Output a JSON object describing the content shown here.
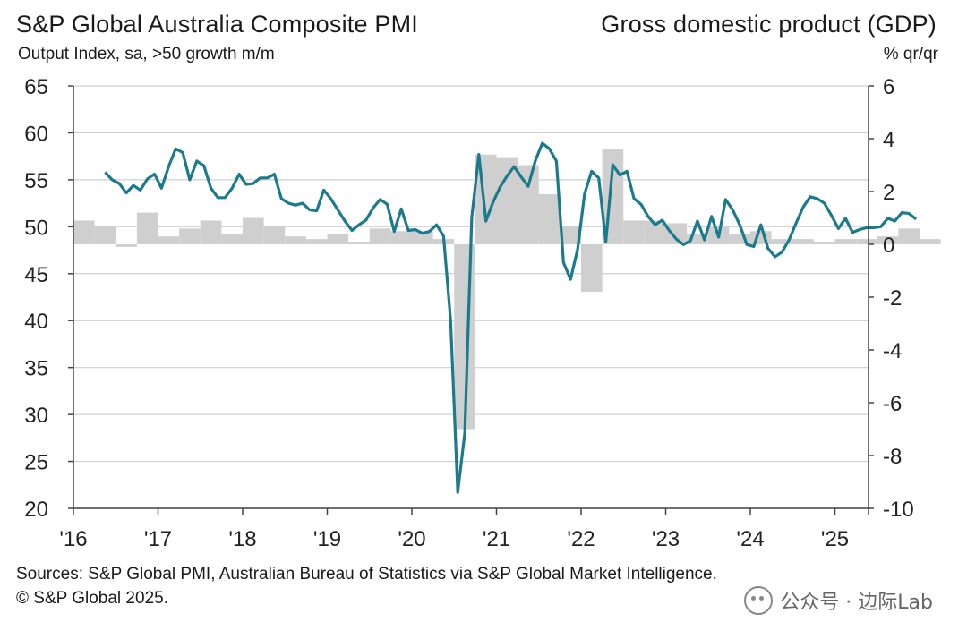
{
  "header": {
    "left_title": "S&P Global Australia Composite PMI",
    "left_subtitle": "Output Index, sa, >50 growth m/m",
    "right_title": "Gross domestic product (GDP)",
    "right_subtitle": "% qr/qr"
  },
  "footer": {
    "sources": "Sources: S&P Global PMI, Australian Bureau of Statistics via S&P Global Market Intelligence.",
    "copyright": "© S&P Global 2025."
  },
  "watermark": {
    "text": "公众号 · 边际Lab",
    "icon": "wechat-icon"
  },
  "colors": {
    "line": "#1b7a8c",
    "bars": "#cfcfcf",
    "grid": "#d0d0d0",
    "axis": "#444444"
  },
  "chart_data": {
    "type": "bar+line",
    "title": "S&P Global Australia Composite PMI",
    "x_tick_labels": [
      "'16",
      "'17",
      "'18",
      "'19",
      "'20",
      "'21",
      "'22",
      "'23",
      "'24",
      "'25"
    ],
    "y_left": {
      "label": "Output Index, sa, >50 growth m/m",
      "range": [
        20,
        65
      ],
      "ticks": [
        65,
        60,
        55,
        50,
        45,
        40,
        35,
        30,
        25,
        20
      ]
    },
    "y_right": {
      "label": "% qr/qr",
      "range": [
        -10,
        6
      ],
      "ticks": [
        6,
        4,
        2,
        0,
        -2,
        -4,
        -6,
        -8,
        -10
      ]
    },
    "grid": true,
    "series": [
      {
        "name": "S&P Global Australia Composite PMI",
        "kind": "line",
        "axis": "left",
        "x_start": "2016-05",
        "frequency": "monthly",
        "values": [
          55.8,
          55.0,
          54.6,
          53.6,
          54.4,
          53.9,
          55.1,
          55.6,
          54.1,
          56.4,
          58.3,
          57.9,
          55.0,
          57.0,
          56.5,
          54.1,
          53.1,
          53.1,
          54.1,
          55.6,
          54.5,
          54.6,
          55.2,
          55.2,
          55.6,
          53.0,
          52.5,
          52.3,
          52.5,
          51.8,
          51.7,
          53.9,
          53.0,
          51.8,
          50.6,
          49.6,
          50.2,
          50.7,
          52.0,
          52.9,
          52.4,
          49.5,
          51.9,
          49.6,
          49.7,
          49.3,
          49.5,
          50.2,
          49.0,
          40.0,
          21.7,
          28.0,
          51.0,
          57.7,
          50.6,
          52.6,
          54.2,
          55.4,
          56.4,
          55.3,
          54.3,
          57.0,
          58.9,
          58.3,
          57.0,
          46.2,
          44.4,
          47.6,
          53.5,
          55.9,
          55.2,
          48.4,
          56.6,
          55.5,
          55.9,
          53.0,
          52.4,
          51.1,
          50.2,
          50.7,
          49.6,
          48.7,
          48.1,
          48.5,
          50.6,
          48.6,
          51.1,
          48.9,
          52.9,
          51.8,
          50.2,
          48.1,
          47.9,
          50.2,
          47.7,
          46.8,
          47.3,
          48.6,
          50.4,
          52.1,
          53.2,
          53.0,
          52.5,
          51.2,
          49.8,
          50.9,
          49.4,
          49.7,
          49.9,
          49.9,
          50.0,
          50.9,
          50.6,
          51.5,
          51.4,
          50.8
        ]
      },
      {
        "name": "Gross domestic product (GDP)",
        "kind": "bar",
        "axis": "right",
        "x_start": "2016-Q1",
        "frequency": "quarterly",
        "values": [
          0.9,
          0.7,
          -0.1,
          1.2,
          0.3,
          0.6,
          0.9,
          0.4,
          1.0,
          0.7,
          0.3,
          0.2,
          0.4,
          0.1,
          0.6,
          0.5,
          0.5,
          0.2,
          -7.0,
          3.4,
          3.3,
          3.0,
          1.9,
          0.7,
          -1.8,
          3.6,
          0.9,
          0.9,
          0.8,
          0.4,
          0.7,
          0.4,
          0.5,
          0.2,
          0.2,
          0.1,
          0.2,
          0.2,
          0.3,
          0.6,
          0.2
        ]
      }
    ]
  }
}
